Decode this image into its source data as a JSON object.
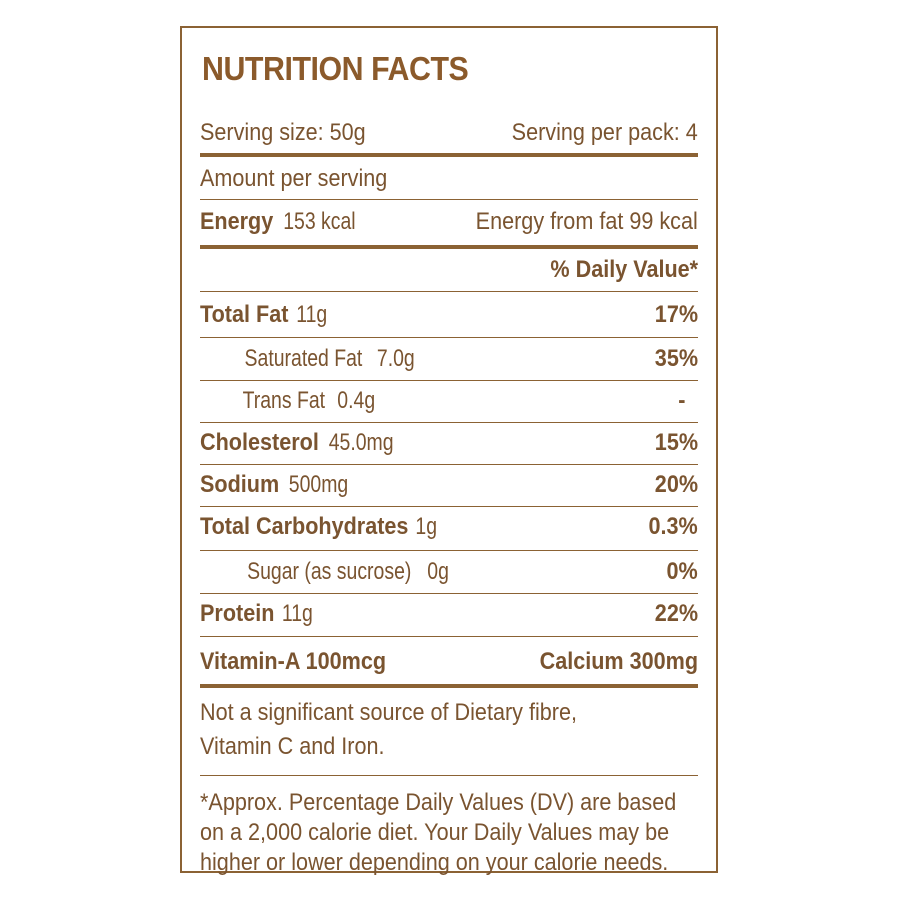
{
  "title": "NUTRITION FACTS",
  "serving_size": "Serving size: 50g",
  "servings_per_pack": "Serving per pack: 4",
  "amount_per_serving": "Amount per serving",
  "energy": {
    "label": "Energy",
    "value": "153 kcal",
    "from_fat": "Energy from fat 99 kcal"
  },
  "daily_value_header": "% Daily Value*",
  "nutrients": [
    {
      "label": "Total Fat",
      "value": "11g",
      "dv": "17%"
    },
    {
      "label": "Saturated Fat",
      "value": "7.0g",
      "dv": "35%"
    },
    {
      "label": "Trans Fat",
      "value": "0.4g",
      "dv": "-"
    },
    {
      "label": "Cholesterol",
      "value": "45.0mg",
      "dv": "15%"
    },
    {
      "label": "Sodium",
      "value": "500mg",
      "dv": "20%"
    },
    {
      "label": "Total Carbohydrates",
      "value": "1g",
      "dv": "0.3%"
    },
    {
      "label": "Sugar (as sucrose)",
      "value": "0g",
      "dv": "0%"
    },
    {
      "label": "Protein",
      "value": "11g",
      "dv": "22%"
    }
  ],
  "vitamin_a": "Vitamin-A 100mcg",
  "calcium": "Calcium 300mg",
  "not_significant": [
    "Not a significant source of Dietary fibre,",
    "Vitamin C and Iron."
  ],
  "footnote": [
    "*Approx. Percentage Daily Values (DV) are based",
    "on a 2,000 calorie diet. Your Daily Values may be",
    "higher or lower depending on your calorie needs."
  ],
  "colors": {
    "brown": "#8b6234",
    "text": "#7a5430"
  }
}
